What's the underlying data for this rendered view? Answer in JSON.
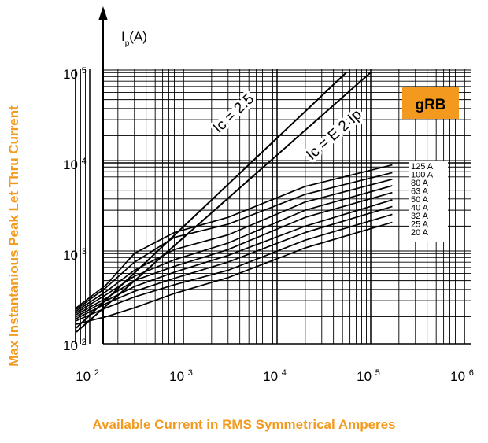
{
  "chart_data": {
    "type": "line",
    "xlabel": "Available Current in RMS Symmetrical Amperes",
    "ylabel": "Max Instantanious Peak Let Thru Current",
    "y_axis_symbol": "I",
    "y_axis_symbol_sub": "p",
    "y_axis_unit": "(A)",
    "badge": "gRB",
    "x_scale": "log",
    "y_scale": "log",
    "xlim": [
      70,
      1000000
    ],
    "ylim": [
      100,
      100000
    ],
    "x_ticks": [
      {
        "base": "10",
        "exp": "2",
        "value": 100
      },
      {
        "base": "10",
        "exp": "3",
        "value": 1000
      },
      {
        "base": "10",
        "exp": "4",
        "value": 10000
      },
      {
        "base": "10",
        "exp": "5",
        "value": 100000
      },
      {
        "base": "10",
        "exp": "6",
        "value": 1000000
      }
    ],
    "y_ticks": [
      {
        "base": "10",
        "exp": "2",
        "value": 100
      },
      {
        "base": "10",
        "exp": "3",
        "value": 1000
      },
      {
        "base": "10",
        "exp": "4",
        "value": 10000
      },
      {
        "base": "10",
        "exp": "5",
        "value": 100000
      }
    ],
    "grid": true,
    "reference_lines": [
      {
        "label": "Ic = 2.5",
        "points": [
          [
            72,
            150
          ],
          [
            55000,
            100000
          ]
        ]
      },
      {
        "label": "Ic = E 2 Ip",
        "points": [
          [
            72,
            135
          ],
          [
            100000,
            100000
          ]
        ]
      }
    ],
    "series": [
      {
        "name": "125 A",
        "points": [
          [
            72,
            250
          ],
          [
            150,
            450
          ],
          [
            300,
            1000
          ],
          [
            800,
            1700
          ],
          [
            3000,
            2500
          ],
          [
            20000,
            5500
          ],
          [
            170000,
            9500
          ]
        ]
      },
      {
        "name": "100 A",
        "points": [
          [
            72,
            240
          ],
          [
            150,
            420
          ],
          [
            300,
            800
          ],
          [
            800,
            1500
          ],
          [
            3000,
            2100
          ],
          [
            20000,
            4500
          ],
          [
            170000,
            7800
          ]
        ]
      },
      {
        "name": "80 A",
        "points": [
          [
            72,
            230
          ],
          [
            150,
            380
          ],
          [
            300,
            650
          ],
          [
            800,
            1100
          ],
          [
            3000,
            1600
          ],
          [
            20000,
            3700
          ],
          [
            170000,
            6600
          ]
        ]
      },
      {
        "name": "63 A",
        "points": [
          [
            72,
            220
          ],
          [
            150,
            350
          ],
          [
            300,
            560
          ],
          [
            800,
            850
          ],
          [
            3000,
            1300
          ],
          [
            20000,
            3000
          ],
          [
            170000,
            5600
          ]
        ]
      },
      {
        "name": "50 A",
        "points": [
          [
            72,
            210
          ],
          [
            150,
            320
          ],
          [
            300,
            500
          ],
          [
            800,
            720
          ],
          [
            3000,
            1100
          ],
          [
            20000,
            2500
          ],
          [
            170000,
            4700
          ]
        ]
      },
      {
        "name": "40 A",
        "points": [
          [
            72,
            200
          ],
          [
            150,
            300
          ],
          [
            300,
            430
          ],
          [
            800,
            620
          ],
          [
            3000,
            950
          ],
          [
            20000,
            2000
          ],
          [
            170000,
            3900
          ]
        ]
      },
      {
        "name": "32 A",
        "points": [
          [
            72,
            190
          ],
          [
            150,
            280
          ],
          [
            300,
            380
          ],
          [
            800,
            530
          ],
          [
            3000,
            800
          ],
          [
            20000,
            1700
          ],
          [
            170000,
            3300
          ]
        ]
      },
      {
        "name": "25 A",
        "points": [
          [
            72,
            180
          ],
          [
            150,
            250
          ],
          [
            300,
            330
          ],
          [
            800,
            450
          ],
          [
            3000,
            650
          ],
          [
            20000,
            1400
          ],
          [
            170000,
            2700
          ]
        ]
      },
      {
        "name": "20 A",
        "points": [
          [
            72,
            165
          ],
          [
            150,
            200
          ],
          [
            300,
            250
          ],
          [
            800,
            360
          ],
          [
            3000,
            540
          ],
          [
            20000,
            1150
          ],
          [
            170000,
            2200
          ]
        ]
      }
    ]
  }
}
